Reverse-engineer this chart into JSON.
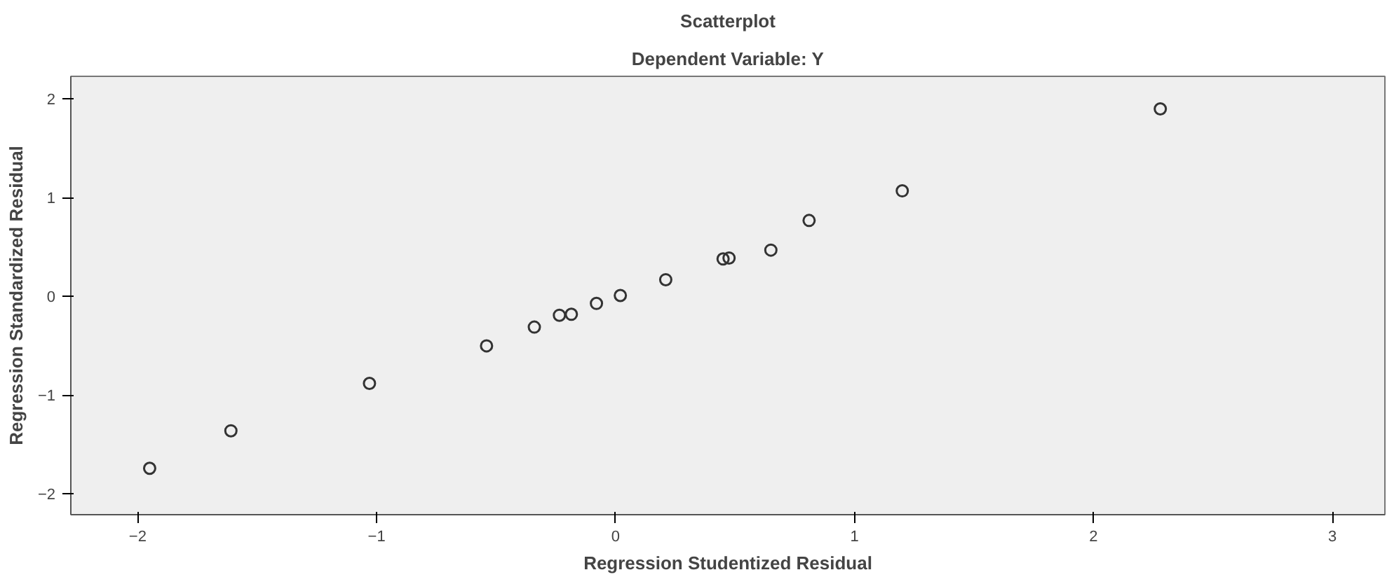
{
  "chart_data": {
    "type": "scatter",
    "title": "Scatterplot",
    "subtitle": "Dependent Variable: Y",
    "xlabel": "Regression Studentized Residual",
    "ylabel": "Regression Standardized Residual",
    "x": [
      -1.95,
      -1.61,
      -1.03,
      -0.54,
      -0.34,
      -0.235,
      -0.185,
      -0.08,
      0.02,
      0.21,
      0.45,
      0.475,
      0.65,
      0.81,
      1.2,
      2.28
    ],
    "values": [
      -1.74,
      -1.36,
      -0.88,
      -0.5,
      -0.31,
      -0.19,
      -0.18,
      -0.07,
      0.01,
      0.17,
      0.38,
      0.39,
      0.47,
      0.77,
      1.07,
      1.9
    ],
    "color": "#333333",
    "marker": "circle",
    "grid": false,
    "xlim": [
      -2.28,
      3.22
    ],
    "ylim": [
      -2.21,
      2.23
    ],
    "xticks": [
      -2,
      -1,
      0,
      1,
      2,
      3
    ],
    "yticks": [
      -2,
      -1,
      0,
      1,
      2
    ]
  }
}
